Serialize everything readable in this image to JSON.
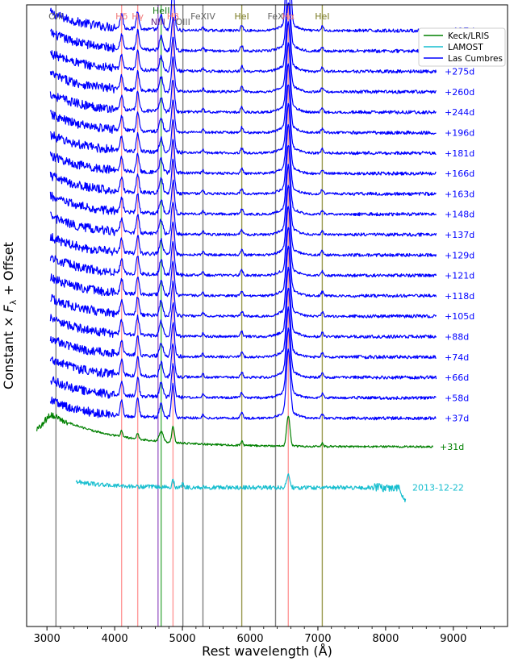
{
  "chart_data": {
    "type": "line",
    "xlabel": "Rest wavelength (Å)",
    "ylabel_prefix": "Constant × ",
    "ylabel_symbol": "F",
    "ylabel_subscript": "λ",
    "ylabel_suffix": " + Offset",
    "xlim": [
      2700,
      9800
    ],
    "x_ticks": [
      3000,
      4000,
      5000,
      6000,
      7000,
      8000,
      9000
    ],
    "x_tick_labels": [
      "3000",
      "4000",
      "5000",
      "6000",
      "7000",
      "8000",
      "9000"
    ],
    "legend_position": "top-right",
    "legend": [
      {
        "label": "Keck/LRIS",
        "color": "#008000"
      },
      {
        "label": "LAMOST",
        "color": "#17becf"
      },
      {
        "label": "Las Cumbres",
        "color": "#0000ff"
      }
    ],
    "lines": [
      {
        "label": "OIII",
        "x": 3133,
        "color": "#808080",
        "label_color": "#666666"
      },
      {
        "label": "Hδ",
        "x": 4102,
        "color": "#ff9999",
        "label_color": "#f07878"
      },
      {
        "label": "Hγ",
        "x": 4340,
        "color": "#ff9999",
        "label_color": "#f07878"
      },
      {
        "label": "NIII",
        "x": 4640,
        "color": "#a064c8",
        "label_color": "#6a2a8a"
      },
      {
        "label": "HeII",
        "x": 4686,
        "color": "#4caf50",
        "label_color": "#1a7a1a"
      },
      {
        "label": "Hβ",
        "x": 4861,
        "color": "#ff9999",
        "label_color": "#f07878"
      },
      {
        "label": "OIII",
        "x": 5007,
        "color": "#808080",
        "label_color": "#666666"
      },
      {
        "label": "FeXIV",
        "x": 5303,
        "color": "#808080",
        "label_color": "#666666"
      },
      {
        "label": "HeI",
        "x": 5876,
        "color": "#9a9a50",
        "label_color": "#7a7a20"
      },
      {
        "label": "FeX",
        "x": 6375,
        "color": "#808080",
        "label_color": "#666666"
      },
      {
        "label": "Hα",
        "x": 6563,
        "color": "#ff9999",
        "label_color": "#f07878"
      },
      {
        "label": "HeI",
        "x": 7065,
        "color": "#9a9a50",
        "label_color": "#7a7a20"
      }
    ],
    "line_label_stagger": [
      1,
      1,
      1,
      2,
      0,
      1,
      2,
      1,
      1,
      1,
      1,
      1
    ],
    "series": [
      {
        "name": "+497d",
        "instrument": "Las Cumbres",
        "offset": 30,
        "xmin": 3050,
        "xmax": 8750,
        "lines_emph": 1.0
      },
      {
        "name": "+463d",
        "instrument": "Las Cumbres",
        "offset": 29,
        "xmin": 3050,
        "xmax": 8750,
        "lines_emph": 0.5
      },
      {
        "name": "+275d",
        "instrument": "Las Cumbres",
        "offset": 28,
        "xmin": 3050,
        "xmax": 8750,
        "lines_emph": 0.5
      },
      {
        "name": "+260d",
        "instrument": "Las Cumbres",
        "offset": 27,
        "xmin": 3050,
        "xmax": 8750,
        "lines_emph": 0.5
      },
      {
        "name": "+244d",
        "instrument": "Las Cumbres",
        "offset": 26,
        "xmin": 3050,
        "xmax": 8750,
        "lines_emph": 0.5
      },
      {
        "name": "+196d",
        "instrument": "Las Cumbres",
        "offset": 25,
        "xmin": 3050,
        "xmax": 8750,
        "lines_emph": 0.5
      },
      {
        "name": "+181d",
        "instrument": "Las Cumbres",
        "offset": 24,
        "xmin": 3050,
        "xmax": 8750,
        "lines_emph": 0.5
      },
      {
        "name": "+166d",
        "instrument": "Las Cumbres",
        "offset": 23,
        "xmin": 3050,
        "xmax": 8750,
        "lines_emph": 0.5
      },
      {
        "name": "+163d",
        "instrument": "Las Cumbres",
        "offset": 22,
        "xmin": 3050,
        "xmax": 8750,
        "lines_emph": 0.5
      },
      {
        "name": "+148d",
        "instrument": "Las Cumbres",
        "offset": 21,
        "xmin": 3050,
        "xmax": 8750,
        "lines_emph": 0.5
      },
      {
        "name": "+137d",
        "instrument": "Las Cumbres",
        "offset": 20,
        "xmin": 3050,
        "xmax": 8750,
        "lines_emph": 0.5
      },
      {
        "name": "+129d",
        "instrument": "Las Cumbres",
        "offset": 19,
        "xmin": 3050,
        "xmax": 8750,
        "lines_emph": 0.5
      },
      {
        "name": "+121d",
        "instrument": "Las Cumbres",
        "offset": 18,
        "xmin": 3050,
        "xmax": 8750,
        "lines_emph": 0.5
      },
      {
        "name": "+118d",
        "instrument": "Las Cumbres",
        "offset": 17,
        "xmin": 3050,
        "xmax": 8750,
        "lines_emph": 0.5
      },
      {
        "name": "+105d",
        "instrument": "Las Cumbres",
        "offset": 16,
        "xmin": 3050,
        "xmax": 8750,
        "lines_emph": 0.5
      },
      {
        "name": "+88d",
        "instrument": "Las Cumbres",
        "offset": 15,
        "xmin": 3050,
        "xmax": 8750,
        "lines_emph": 0.5
      },
      {
        "name": "+74d",
        "instrument": "Las Cumbres",
        "offset": 14,
        "xmin": 3050,
        "xmax": 8750,
        "lines_emph": 0.5
      },
      {
        "name": "+66d",
        "instrument": "Las Cumbres",
        "offset": 13,
        "xmin": 3050,
        "xmax": 8750,
        "lines_emph": 0.5
      },
      {
        "name": "+58d",
        "instrument": "Las Cumbres",
        "offset": 12,
        "xmin": 3050,
        "xmax": 8750,
        "lines_emph": 0.5
      },
      {
        "name": "+37d",
        "instrument": "Las Cumbres",
        "offset": 11,
        "xmin": 3050,
        "xmax": 8750,
        "lines_emph": 0.5
      },
      {
        "name": "+31d",
        "instrument": "Keck/LRIS",
        "offset": 9.6,
        "xmin": 2850,
        "xmax": 8700,
        "lines_emph": 0.5
      },
      {
        "name": "2013-12-22",
        "instrument": "LAMOST",
        "offset": 7.6,
        "xmin": 3430,
        "xmax": 8300,
        "lines_emph": 0.3
      }
    ]
  }
}
